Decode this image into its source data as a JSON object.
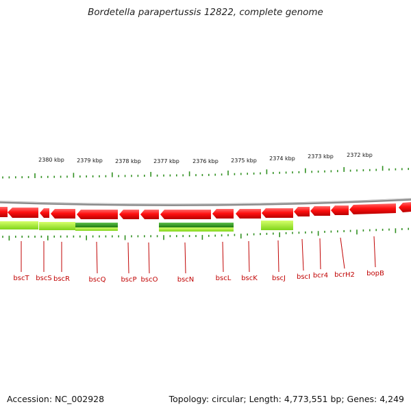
{
  "title": "Bordetella parapertussis 12822, complete genome",
  "accession": "Accession: NC_002928",
  "summary": "Topology: circular; Length: 4,773,551 bp; Genes: 4,249",
  "colors": {
    "gene": "#ff1a1a",
    "gene_dark": "#b30000",
    "backbone": "#888888",
    "feature_light": "#99ee22",
    "feature_dark": "#2a8a1a",
    "tick": "#2f8f1f",
    "label": "#c00000"
  },
  "ruler_ticks": [
    "2380 kbp",
    "2379 kbp",
    "2378 kbp",
    "2377 kbp",
    "2376 kbp",
    "2375 kbp",
    "2374 kbp",
    "2373 kbp",
    "2372 kbp"
  ],
  "genes": [
    "bscT",
    "bscS",
    "bscR",
    "bscQ",
    "bscP",
    "bscO",
    "bscN",
    "bscL",
    "bscK",
    "bscJ",
    "bscI",
    "bcr4",
    "bcrH2",
    "bopB"
  ]
}
